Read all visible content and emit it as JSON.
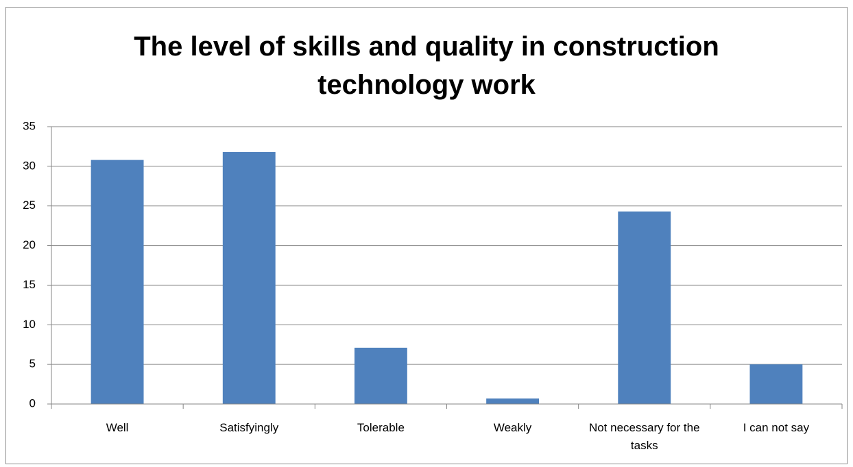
{
  "chart_data": {
    "type": "bar",
    "title": "The level of skills and quality in construction technology work",
    "categories": [
      "Well",
      "Satisfyingly",
      "Tolerable",
      "Weakly",
      "Not necessary for the tasks",
      "I can not say"
    ],
    "values": [
      30.8,
      31.8,
      7.1,
      0.7,
      24.3,
      5.0
    ],
    "color": "#4f81bd",
    "ylim": [
      0,
      35
    ],
    "yticks": [
      0,
      5,
      10,
      15,
      20,
      25,
      30,
      35
    ],
    "grid": true
  }
}
